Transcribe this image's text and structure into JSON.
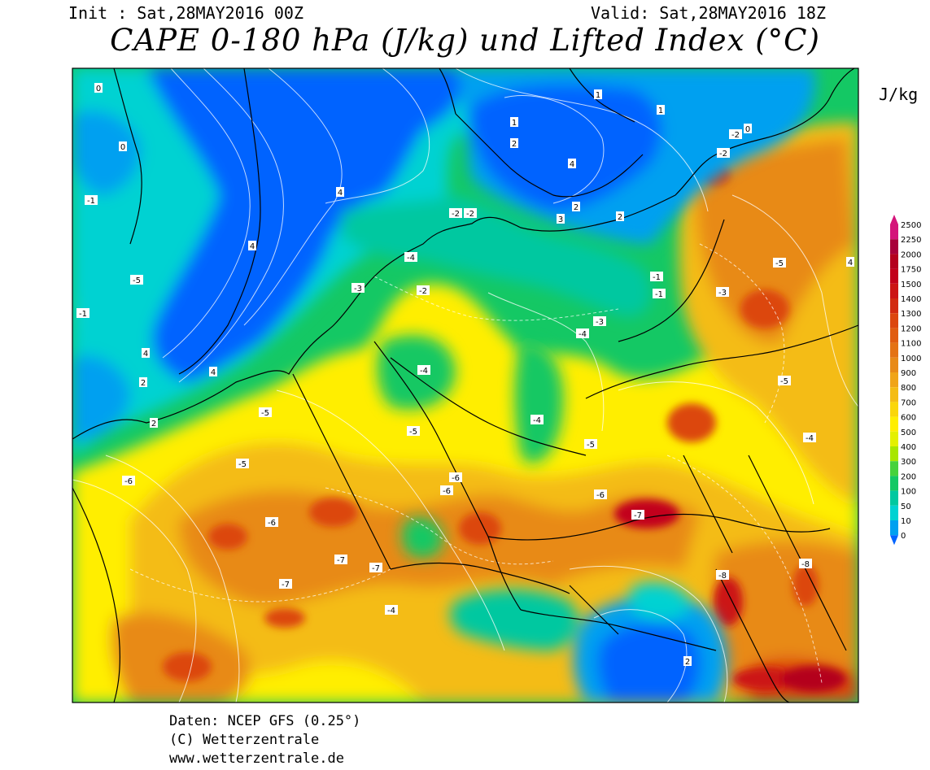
{
  "header": {
    "init": "Init : Sat,28MAY2016 00Z",
    "valid": "Valid: Sat,28MAY2016 18Z",
    "title": "CAPE 0-180 hPa (J/kg) und Lifted Index (°C)"
  },
  "legend": {
    "unit": "J/kg",
    "levels": [
      {
        "label": "2500",
        "color": "#d4147a"
      },
      {
        "label": "2250",
        "color": "#a8003a"
      },
      {
        "label": "2000",
        "color": "#b4001e"
      },
      {
        "label": "1750",
        "color": "#c2001a"
      },
      {
        "label": "1500",
        "color": "#cc1414"
      },
      {
        "label": "1400",
        "color": "#d22a10"
      },
      {
        "label": "1300",
        "color": "#dc460e"
      },
      {
        "label": "1200",
        "color": "#e05c10"
      },
      {
        "label": "1100",
        "color": "#e47214"
      },
      {
        "label": "1000",
        "color": "#e88a18"
      },
      {
        "label": "900",
        "color": "#f0a418"
      },
      {
        "label": "800",
        "color": "#f4bc14"
      },
      {
        "label": "700",
        "color": "#fad60a"
      },
      {
        "label": "600",
        "color": "#ffee00"
      },
      {
        "label": "500",
        "color": "#e4f000"
      },
      {
        "label": "400",
        "color": "#a8e600"
      },
      {
        "label": "300",
        "color": "#46d23c"
      },
      {
        "label": "200",
        "color": "#14c864"
      },
      {
        "label": "100",
        "color": "#00c8a0"
      },
      {
        "label": "50",
        "color": "#00d2d2"
      },
      {
        "label": "10",
        "color": "#00a0f0"
      },
      {
        "label": "0",
        "color": "#0064ff"
      }
    ]
  },
  "colors": {
    "ocean_deep": "#0064ff",
    "light_blue": "#00a0f0",
    "cyan": "#00d2d2",
    "teal": "#00c8a0",
    "green": "#14c864",
    "lime": "#a8e600",
    "yellow": "#ffee00",
    "light_orange": "#f4bc14",
    "orange": "#e88a18",
    "dark_orange": "#dc460e",
    "red": "#c2001a"
  },
  "lifted_index_labels": [
    "0",
    "0",
    "-1",
    "-1",
    "-2",
    "-2",
    "0",
    "1",
    "1",
    "1",
    "2",
    "2",
    "2",
    "2",
    "2",
    "2",
    "4",
    "4",
    "4",
    "4",
    "4",
    "4",
    "3",
    "-1",
    "-2",
    "-3",
    "-3",
    "-4",
    "-4",
    "-4",
    "-4",
    "-4",
    "-4",
    "-5",
    "-5",
    "-5",
    "-5",
    "-5",
    "-5",
    "-5",
    "-6",
    "-6",
    "-6",
    "-6",
    "-6",
    "-7",
    "-7",
    "-7",
    "-7",
    "-8",
    "-8",
    "-1",
    "-2",
    "-2",
    "-3"
  ],
  "credits": [
    "Daten: NCEP GFS (0.25°)",
    "(C) Wetterzentrale",
    "www.wetterzentrale.de"
  ]
}
